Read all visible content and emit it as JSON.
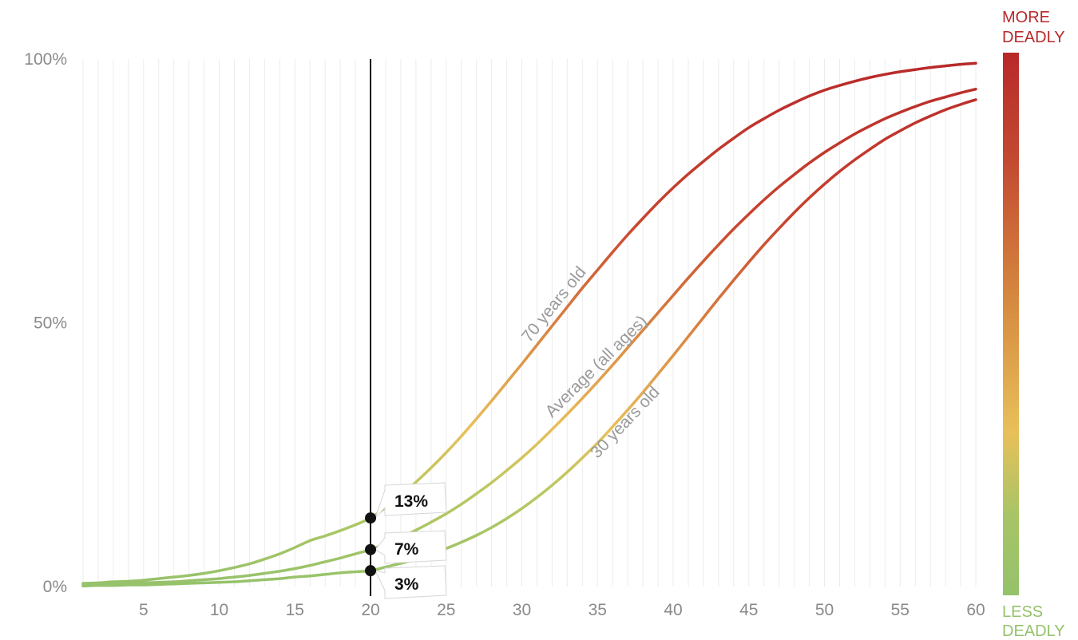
{
  "chart_data": {
    "type": "line",
    "x": [
      1,
      2,
      3,
      4,
      5,
      6,
      7,
      8,
      9,
      10,
      11,
      12,
      13,
      14,
      15,
      16,
      17,
      18,
      19,
      20,
      21,
      22,
      23,
      24,
      25,
      26,
      27,
      28,
      29,
      30,
      31,
      32,
      33,
      34,
      35,
      36,
      37,
      38,
      39,
      40,
      41,
      42,
      43,
      44,
      45,
      46,
      47,
      48,
      49,
      50,
      51,
      52,
      53,
      54,
      55,
      56,
      57,
      58,
      59,
      60
    ],
    "xlim": [
      1,
      60
    ],
    "ylim": [
      0,
      100
    ],
    "x_ticks": [
      "5",
      "10",
      "15",
      "20",
      "25",
      "30",
      "35",
      "40",
      "45",
      "50",
      "55",
      "60"
    ],
    "y_ticks": [
      "0%",
      "50%",
      "100%"
    ],
    "grid": true,
    "series": [
      {
        "name": "70 years old",
        "values": [
          0.6,
          0.7,
          0.9,
          1.0,
          1.2,
          1.5,
          1.8,
          2.1,
          2.5,
          3.0,
          3.6,
          4.3,
          5.2,
          6.2,
          7.4,
          8.7,
          9.6,
          10.6,
          11.7,
          13.0,
          15.0,
          17.3,
          19.8,
          22.5,
          25.4,
          28.5,
          31.8,
          35.2,
          38.7,
          42.2,
          45.8,
          49.4,
          53.0,
          56.6,
          60.0,
          63.4,
          66.7,
          69.8,
          72.8,
          75.6,
          78.2,
          80.6,
          82.9,
          85.0,
          87.0,
          88.7,
          90.3,
          91.7,
          93.0,
          94.1,
          95.0,
          95.8,
          96.5,
          97.1,
          97.6,
          98.0,
          98.4,
          98.7,
          99.0,
          99.2
        ]
      },
      {
        "name": "Average (all ages)",
        "values": [
          0.3,
          0.4,
          0.5,
          0.6,
          0.7,
          0.8,
          0.9,
          1.1,
          1.3,
          1.5,
          1.8,
          2.1,
          2.5,
          2.9,
          3.4,
          4.0,
          4.7,
          5.4,
          6.2,
          7.0,
          8.1,
          9.3,
          10.7,
          12.2,
          13.8,
          15.6,
          17.6,
          19.7,
          22.0,
          24.4,
          27.0,
          29.8,
          32.7,
          35.7,
          38.8,
          42.0,
          45.3,
          48.6,
          51.9,
          55.2,
          58.5,
          61.7,
          64.8,
          67.8,
          70.6,
          73.3,
          75.8,
          78.1,
          80.3,
          82.3,
          84.1,
          85.8,
          87.3,
          88.7,
          89.9,
          91.0,
          92.0,
          92.8,
          93.6,
          94.3
        ]
      },
      {
        "name": "30 years old",
        "values": [
          0.1,
          0.2,
          0.2,
          0.3,
          0.3,
          0.4,
          0.5,
          0.6,
          0.7,
          0.8,
          0.9,
          1.1,
          1.3,
          1.5,
          1.8,
          2.0,
          2.3,
          2.6,
          2.8,
          3.0,
          3.7,
          4.4,
          5.2,
          6.1,
          7.2,
          8.4,
          9.7,
          11.2,
          12.9,
          14.8,
          16.9,
          19.2,
          21.7,
          24.4,
          27.2,
          30.3,
          33.5,
          36.8,
          40.3,
          43.8,
          47.4,
          51.0,
          54.6,
          58.1,
          61.5,
          64.8,
          67.9,
          70.9,
          73.7,
          76.3,
          78.7,
          80.9,
          82.9,
          84.8,
          86.4,
          87.9,
          89.2,
          90.4,
          91.4,
          92.3
        ]
      }
    ],
    "marker": {
      "x": 20,
      "points": [
        {
          "y": 13,
          "label": "13%"
        },
        {
          "y": 7,
          "label": "7%"
        },
        {
          "y": 3,
          "label": "3%"
        }
      ]
    },
    "color_scale": {
      "top_label": [
        "MORE",
        "DEADLY"
      ],
      "bottom_label": [
        "LESS",
        "DEADLY"
      ],
      "low_color": "#95c26b",
      "mid_color": "#e8c05a",
      "high_color": "#b8292a"
    }
  }
}
